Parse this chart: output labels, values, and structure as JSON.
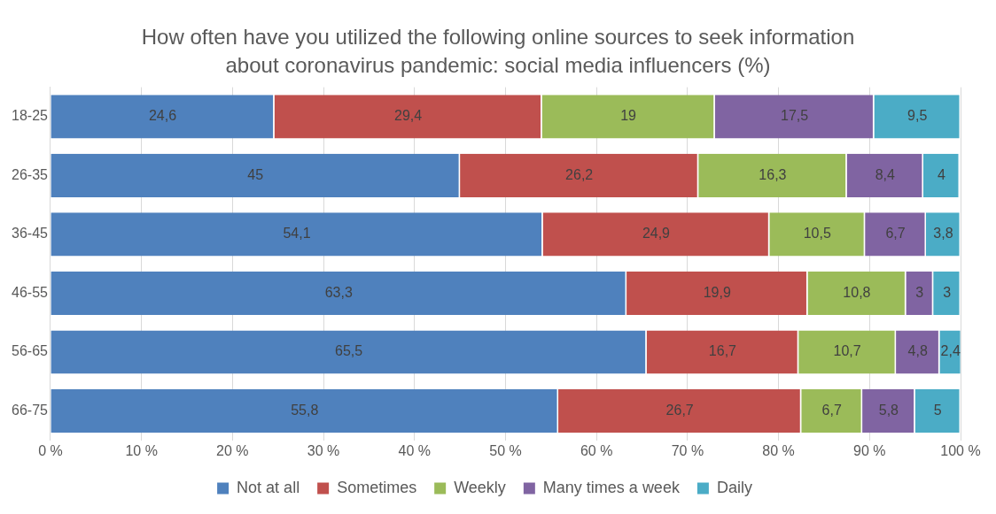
{
  "chart_data": {
    "type": "bar",
    "orientation": "horizontal",
    "stacked": true,
    "title": "How often have you utilized the following online sources to seek information about coronavirus pandemic: social media influencers (%)",
    "categories": [
      "18-25",
      "26-35",
      "36-45",
      "46-55",
      "56-65",
      "66-75"
    ],
    "series": [
      {
        "name": "Not at all",
        "color": "#4f81bd",
        "values": [
          24.6,
          45,
          54.1,
          63.3,
          65.5,
          55.8
        ],
        "value_labels": [
          "24,6",
          "45",
          "54,1",
          "63,3",
          "65,5",
          "55,8"
        ]
      },
      {
        "name": "Sometimes",
        "color": "#c0504d",
        "values": [
          29.4,
          26.2,
          24.9,
          19.9,
          16.7,
          26.7
        ],
        "value_labels": [
          "29,4",
          "26,2",
          "24,9",
          "19,9",
          "16,7",
          "26,7"
        ]
      },
      {
        "name": "Weekly",
        "color": "#9bbb59",
        "values": [
          19,
          16.3,
          10.5,
          10.8,
          10.7,
          6.7
        ],
        "value_labels": [
          "19",
          "16,3",
          "10,5",
          "10,8",
          "10,7",
          "6,7"
        ]
      },
      {
        "name": "Many times a week",
        "color": "#8064a2",
        "values": [
          17.5,
          8.4,
          6.7,
          3,
          4.8,
          5.8
        ],
        "value_labels": [
          "17,5",
          "8,4",
          "6,7",
          "3",
          "4,8",
          "5,8"
        ]
      },
      {
        "name": "Daily",
        "color": "#4bacc6",
        "values": [
          9.5,
          4,
          3.8,
          3,
          2.4,
          5
        ],
        "value_labels": [
          "9,5",
          "4",
          "3,8",
          "3",
          "2,4",
          "5"
        ]
      }
    ],
    "xlim": [
      0,
      100
    ],
    "xticks": [
      {
        "value": 0,
        "label": "0 %"
      },
      {
        "value": 10,
        "label": "10 %"
      },
      {
        "value": 20,
        "label": "20 %"
      },
      {
        "value": 30,
        "label": "30 %"
      },
      {
        "value": 40,
        "label": "40 %"
      },
      {
        "value": 50,
        "label": "50 %"
      },
      {
        "value": 60,
        "label": "60 %"
      },
      {
        "value": 70,
        "label": "70 %"
      },
      {
        "value": 80,
        "label": "80 %"
      },
      {
        "value": 90,
        "label": "90 %"
      },
      {
        "value": 100,
        "label": "100 %"
      }
    ],
    "grid": "x",
    "legend": "bottom"
  }
}
